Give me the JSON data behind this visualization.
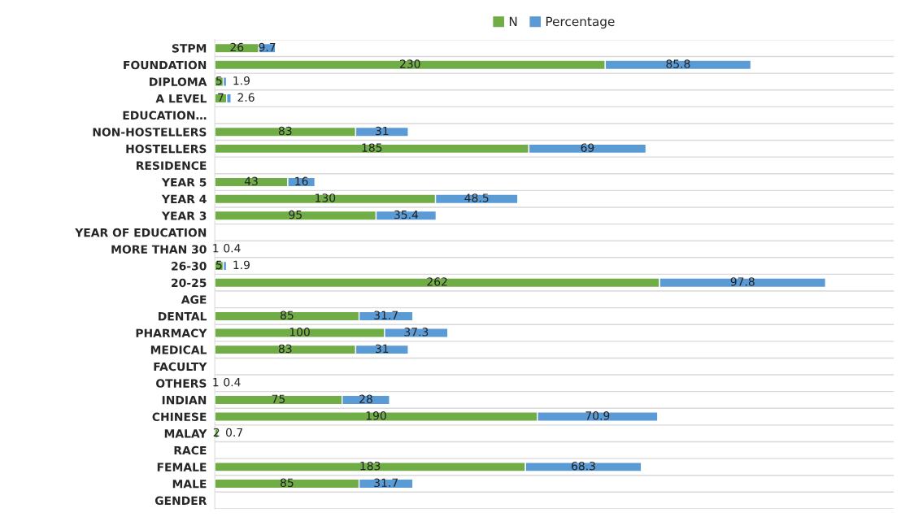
{
  "chart_data": {
    "type": "bar",
    "orientation": "horizontal",
    "stacked": true,
    "data_labels": true,
    "legend": "top",
    "grid": "y",
    "tick_labels": "y",
    "xlim": [
      0,
      400
    ],
    "categories": [
      "STPM",
      "FOUNDATION",
      "DIPLOMA",
      "A LEVEL",
      "EDUCATION…",
      "NON-HOSTELLERS",
      "HOSTELLERS",
      "RESIDENCE",
      "YEAR 5",
      "YEAR 4",
      "YEAR 3",
      "YEAR OF EDUCATION",
      "MORE THAN 30",
      "26-30",
      "20-25",
      "AGE",
      "DENTAL",
      "PHARMACY",
      "MEDICAL",
      "FACULTY",
      "OTHERS",
      "INDIAN",
      "CHINESE",
      "MALAY",
      "RACE",
      "FEMALE",
      "MALE",
      "GENDER"
    ],
    "series": [
      {
        "name": "N",
        "color": "#70ad47",
        "values": [
          26,
          230,
          5,
          7,
          null,
          83,
          185,
          null,
          43,
          130,
          95,
          null,
          1,
          5,
          262,
          null,
          85,
          100,
          83,
          null,
          1,
          75,
          190,
          2,
          null,
          183,
          85,
          null
        ]
      },
      {
        "name": "Percentage",
        "color": "#5b9bd5",
        "values": [
          9.7,
          85.8,
          1.9,
          2.6,
          null,
          31,
          69,
          null,
          16,
          48.5,
          35.4,
          null,
          0.4,
          1.9,
          97.8,
          null,
          31.7,
          37.3,
          31,
          null,
          0.4,
          28,
          70.9,
          0.7,
          null,
          68.3,
          31.7,
          null
        ]
      }
    ]
  }
}
